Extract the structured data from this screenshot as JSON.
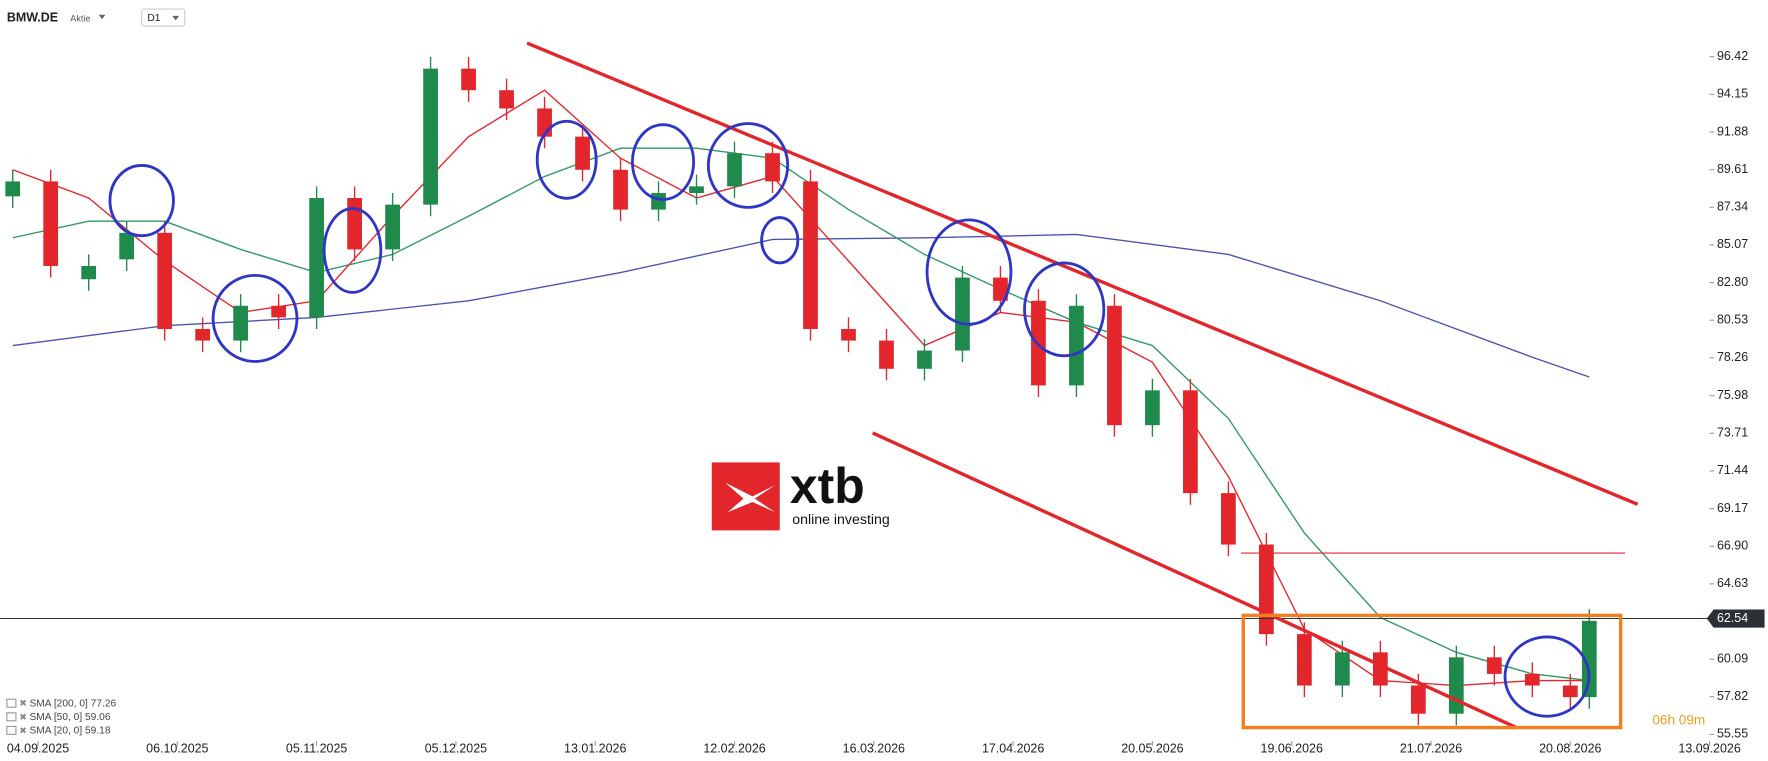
{
  "header": {
    "symbol": "BMW.DE",
    "kind": "Aktie",
    "timeframe": "D1"
  },
  "logo": {
    "text": "xtb",
    "tagline": "online investing"
  },
  "countdown": "06h 09m",
  "chart_data": {
    "type": "candlestick",
    "xlim": [
      -2,
      268
    ],
    "ylim": [
      54.87,
      99.84
    ],
    "xticks": [
      {
        "value": 4,
        "label": "04.09.2025"
      },
      {
        "value": 26,
        "label": "06.10.2025"
      },
      {
        "value": 48,
        "label": "05.11.2025"
      },
      {
        "value": 70,
        "label": "05.12.2025"
      },
      {
        "value": 92,
        "label": "13.01.2026"
      },
      {
        "value": 114,
        "label": "12.02.2026"
      },
      {
        "value": 136,
        "label": "16.03.2026"
      },
      {
        "value": 158,
        "label": "17.04.2026"
      },
      {
        "value": 180,
        "label": "20.05.2026"
      },
      {
        "value": 202,
        "label": "19.06.2026"
      },
      {
        "value": 224,
        "label": "21.07.2026"
      },
      {
        "value": 246,
        "label": "20.08.2026"
      },
      {
        "value": 268,
        "label": "13.09.2026"
      }
    ],
    "yticks": [
      96.42,
      94.15,
      91.88,
      89.61,
      87.34,
      85.07,
      {
        "value": 82.8,
        "label": "82.80"
      },
      80.53,
      78.26,
      75.98,
      73.71,
      71.44,
      69.17,
      {
        "value": 66.9,
        "label": "66.90"
      },
      64.63,
      60.09,
      57.82,
      55.55
    ],
    "last_price": 62.54,
    "up_color": "#1f8a4c",
    "down_color": "#e3262c",
    "candles": {
      "x": [
        0,
        6,
        12,
        18,
        24,
        30,
        36,
        42,
        48,
        54,
        60,
        66,
        72,
        78,
        84,
        90,
        96,
        102,
        108,
        114,
        120,
        126,
        132,
        138,
        144,
        150,
        156,
        162,
        168,
        174,
        180,
        186,
        192,
        198,
        204,
        210,
        216,
        222,
        228,
        234,
        240,
        246,
        249
      ],
      "open": [
        88.0,
        88.9,
        83.0,
        84.2,
        85.8,
        80.0,
        79.3,
        81.4,
        80.7,
        87.9,
        84.8,
        87.5,
        95.7,
        94.4,
        93.3,
        91.6,
        89.6,
        87.2,
        88.2,
        88.6,
        90.6,
        88.9,
        80.0,
        79.3,
        77.6,
        78.7,
        83.1,
        81.7,
        76.6,
        81.4,
        74.2,
        76.3,
        70.1,
        67.0,
        61.6,
        58.5,
        60.5,
        58.5,
        56.8,
        60.2,
        59.2,
        58.5,
        57.8
      ],
      "high": [
        89.6,
        89.6,
        84.5,
        86.5,
        86.5,
        80.7,
        82.1,
        82.1,
        88.6,
        88.6,
        88.2,
        96.4,
        96.4,
        95.1,
        94.0,
        92.3,
        90.3,
        88.9,
        89.3,
        91.3,
        91.3,
        89.6,
        80.7,
        80.0,
        79.4,
        83.8,
        83.8,
        82.4,
        82.1,
        82.1,
        77.0,
        77.0,
        70.8,
        67.7,
        62.3,
        61.2,
        61.2,
        59.2,
        60.9,
        60.9,
        59.9,
        59.2,
        63.1
      ],
      "low": [
        87.3,
        83.1,
        82.3,
        83.5,
        79.3,
        78.6,
        78.6,
        80.0,
        80.0,
        84.1,
        84.1,
        86.8,
        93.7,
        92.6,
        90.9,
        88.9,
        86.5,
        86.5,
        87.5,
        87.9,
        88.2,
        79.3,
        78.6,
        76.9,
        76.9,
        78.0,
        81.0,
        75.9,
        75.9,
        73.5,
        73.5,
        69.4,
        66.3,
        60.9,
        57.8,
        57.8,
        57.8,
        56.1,
        56.1,
        58.5,
        57.8,
        57.1,
        57.1
      ],
      "close": [
        88.9,
        83.8,
        83.8,
        85.8,
        80.0,
        79.3,
        81.4,
        80.7,
        87.9,
        84.8,
        87.5,
        95.7,
        94.4,
        93.3,
        91.6,
        89.6,
        87.2,
        88.2,
        88.6,
        90.6,
        88.9,
        80.0,
        79.3,
        77.6,
        78.7,
        83.1,
        81.7,
        76.6,
        81.4,
        74.2,
        76.3,
        70.1,
        67.0,
        61.6,
        58.5,
        60.5,
        58.5,
        56.8,
        60.2,
        59.2,
        58.5,
        57.8,
        62.4
      ]
    },
    "indicators": [
      {
        "name": "SMA [200, 0] 77.26",
        "color": "#4a55b0",
        "x": [
          0,
          24,
          48,
          72,
          96,
          120,
          144,
          168,
          192,
          216,
          240,
          249
        ],
        "values": [
          79.0,
          80.2,
          80.7,
          81.7,
          83.4,
          85.4,
          85.5,
          85.7,
          84.5,
          81.7,
          78.3,
          77.1
        ]
      },
      {
        "name": "SMA [50, 0] 59.06",
        "color": "#2e9a62",
        "x": [
          0,
          12,
          24,
          36,
          48,
          60,
          72,
          84,
          96,
          108,
          120,
          132,
          144,
          156,
          168,
          180,
          192,
          204,
          216,
          228,
          240,
          249
        ],
        "values": [
          85.5,
          86.5,
          86.5,
          84.8,
          83.4,
          84.5,
          86.8,
          89.2,
          90.9,
          90.9,
          90.3,
          87.2,
          84.5,
          82.4,
          80.4,
          79.0,
          74.6,
          67.7,
          62.6,
          60.5,
          59.2,
          58.8
        ]
      },
      {
        "name": "SMA [20, 0] 59.18",
        "color": "#e3262c",
        "x": [
          0,
          12,
          24,
          36,
          48,
          60,
          72,
          84,
          96,
          108,
          120,
          132,
          144,
          156,
          168,
          180,
          192,
          204,
          216,
          228,
          240,
          249
        ],
        "values": [
          89.6,
          87.9,
          84.1,
          81.0,
          81.7,
          86.8,
          91.6,
          94.4,
          90.3,
          87.9,
          89.2,
          84.1,
          79.0,
          81.0,
          80.4,
          78.0,
          71.1,
          61.9,
          58.8,
          58.5,
          58.8,
          58.8
        ]
      }
    ]
  }
}
